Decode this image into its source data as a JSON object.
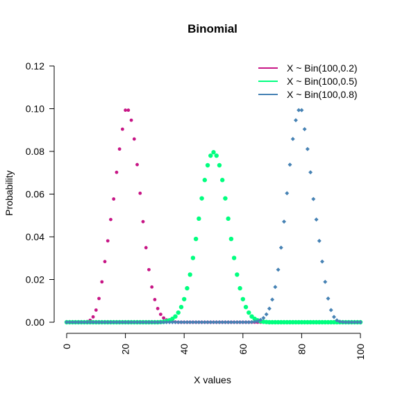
{
  "chart_data": {
    "type": "scatter",
    "title": "Binomial",
    "xlabel": "X values",
    "ylabel": "Probability",
    "xlim": [
      0,
      100
    ],
    "ylim": [
      0,
      0.12
    ],
    "x_ticks": [
      "0",
      "20",
      "40",
      "60",
      "80",
      "100"
    ],
    "y_ticks": [
      "0.00",
      "0.02",
      "0.04",
      "0.06",
      "0.08",
      "0.10",
      "0.12"
    ],
    "legend_position": "top-right",
    "x": [
      0,
      1,
      2,
      3,
      4,
      5,
      6,
      7,
      8,
      9,
      10,
      11,
      12,
      13,
      14,
      15,
      16,
      17,
      18,
      19,
      20,
      21,
      22,
      23,
      24,
      25,
      26,
      27,
      28,
      29,
      30,
      31,
      32,
      33,
      34,
      35,
      36,
      37,
      38,
      39,
      40,
      41,
      42,
      43,
      44,
      45,
      46,
      47,
      48,
      49,
      50,
      51,
      52,
      53,
      54,
      55,
      56,
      57,
      58,
      59,
      60,
      61,
      62,
      63,
      64,
      65,
      66,
      67,
      68,
      69,
      70,
      71,
      72,
      73,
      74,
      75,
      76,
      77,
      78,
      79,
      80,
      81,
      82,
      83,
      84,
      85,
      86,
      87,
      88,
      89,
      90,
      91,
      92,
      93,
      94,
      95,
      96,
      97,
      98,
      99,
      100
    ],
    "series": [
      {
        "name": "X ~ Bin(100,0.2)",
        "color": "#C71585",
        "marker": "circle",
        "values": [
          0,
          0,
          0,
          0,
          0,
          0,
          0.0001,
          0.0003,
          0.0009,
          0.0025,
          0.0057,
          0.0111,
          0.0189,
          0.0284,
          0.0381,
          0.0481,
          0.0577,
          0.0702,
          0.0811,
          0.0904,
          0.0993,
          0.0993,
          0.0946,
          0.0858,
          0.0738,
          0.0604,
          0.0471,
          0.0349,
          0.0246,
          0.0165,
          0.0106,
          0.0064,
          0.0037,
          0.002,
          0.0011,
          0.0005,
          0.0003,
          0.0001,
          0,
          0,
          0,
          0,
          0,
          0,
          0,
          0,
          0,
          0,
          0,
          0,
          0,
          0,
          0,
          0,
          0,
          0,
          0,
          0,
          0,
          0,
          0,
          0,
          0,
          0,
          0,
          0,
          0,
          0,
          0,
          0,
          0,
          0,
          0,
          0,
          0,
          0,
          0,
          0,
          0,
          0,
          0,
          0,
          0,
          0,
          0,
          0,
          0,
          0,
          0,
          0,
          0,
          0,
          0,
          0,
          0,
          0,
          0,
          0,
          0,
          0,
          0
        ]
      },
      {
        "name": "X ~ Bin(100,0.5)",
        "color": "#00FF7F",
        "marker": "circle",
        "values": [
          0,
          0,
          0,
          0,
          0,
          0,
          0,
          0,
          0,
          0,
          0,
          0,
          0,
          0,
          0,
          0,
          0,
          0,
          0,
          0,
          0,
          0,
          0,
          0,
          0,
          0,
          0,
          0,
          0,
          0,
          0,
          0,
          0.0001,
          0.0002,
          0.0005,
          0.0009,
          0.0016,
          0.0027,
          0.0045,
          0.0071,
          0.0108,
          0.0159,
          0.0223,
          0.0301,
          0.039,
          0.0485,
          0.058,
          0.0666,
          0.0735,
          0.078,
          0.0796,
          0.078,
          0.0735,
          0.0666,
          0.058,
          0.0485,
          0.039,
          0.0301,
          0.0223,
          0.0159,
          0.0108,
          0.0071,
          0.0045,
          0.0027,
          0.0016,
          0.0009,
          0.0005,
          0.0002,
          0.0001,
          0,
          0,
          0,
          0,
          0,
          0,
          0,
          0,
          0,
          0,
          0,
          0,
          0,
          0,
          0,
          0,
          0,
          0,
          0,
          0,
          0,
          0,
          0,
          0,
          0,
          0,
          0,
          0,
          0,
          0,
          0,
          0
        ]
      },
      {
        "name": "X ~ Bin(100,0.8)",
        "color": "#4682B4",
        "marker": "diamond",
        "values": [
          0,
          0,
          0,
          0,
          0,
          0,
          0,
          0,
          0,
          0,
          0,
          0,
          0,
          0,
          0,
          0,
          0,
          0,
          0,
          0,
          0,
          0,
          0,
          0,
          0,
          0,
          0,
          0,
          0,
          0,
          0,
          0,
          0,
          0,
          0,
          0,
          0,
          0,
          0,
          0,
          0,
          0,
          0,
          0,
          0,
          0,
          0,
          0,
          0,
          0,
          0,
          0,
          0,
          0,
          0,
          0,
          0,
          0,
          0,
          0,
          0,
          0,
          0,
          0.0001,
          0.0003,
          0.0005,
          0.0011,
          0.002,
          0.0037,
          0.0064,
          0.0106,
          0.0165,
          0.0246,
          0.0349,
          0.0471,
          0.0604,
          0.0738,
          0.0858,
          0.0946,
          0.0993,
          0.0993,
          0.0904,
          0.0811,
          0.0702,
          0.0577,
          0.0481,
          0.0381,
          0.0284,
          0.0189,
          0.0111,
          0.0057,
          0.0025,
          0.0009,
          0.0003,
          0.0001,
          0,
          0,
          0,
          0,
          0,
          0
        ]
      }
    ]
  }
}
